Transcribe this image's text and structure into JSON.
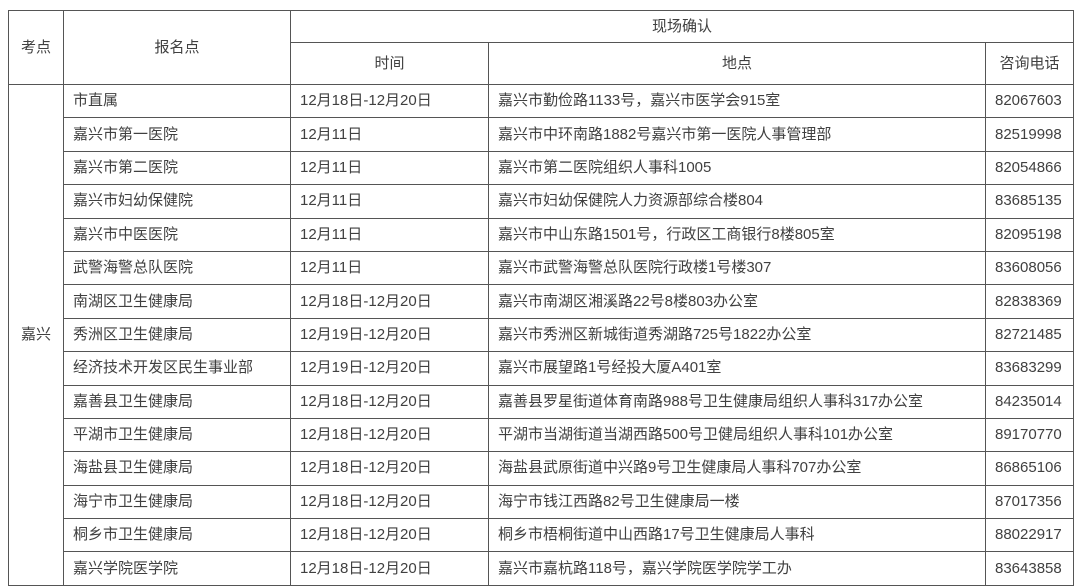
{
  "colors": {
    "background": "#ffffff",
    "text": "#404040",
    "border": "#555555"
  },
  "table": {
    "header": {
      "exam_site": "考点",
      "registration_point": "报名点",
      "onsite_confirmation": "现场确认",
      "time": "时间",
      "location": "地点",
      "phone": "咨询电话"
    },
    "exam_site_group": "嘉兴",
    "rows": [
      {
        "point": "市直属",
        "time": "12月18日-12月20日",
        "location": "嘉兴市勤俭路1133号，嘉兴市医学会915室",
        "phone": "82067603"
      },
      {
        "point": "嘉兴市第一医院",
        "time": "12月11日",
        "location": "嘉兴市中环南路1882号嘉兴市第一医院人事管理部",
        "phone": "82519998"
      },
      {
        "point": "嘉兴市第二医院",
        "time": "12月11日",
        "location": "嘉兴市第二医院组织人事科1005",
        "phone": "82054866"
      },
      {
        "point": "嘉兴市妇幼保健院",
        "time": "12月11日",
        "location": "嘉兴市妇幼保健院人力资源部综合楼804",
        "phone": "83685135"
      },
      {
        "point": "嘉兴市中医医院",
        "time": "12月11日",
        "location": "嘉兴市中山东路1501号，行政区工商银行8楼805室",
        "phone": "82095198"
      },
      {
        "point": "武警海警总队医院",
        "time": "12月11日",
        "location": "嘉兴市武警海警总队医院行政楼1号楼307",
        "phone": "83608056"
      },
      {
        "point": "南湖区卫生健康局",
        "time": "12月18日-12月20日",
        "location": "嘉兴市南湖区湘溪路22号8楼803办公室",
        "phone": "82838369"
      },
      {
        "point": "秀洲区卫生健康局",
        "time": "12月19日-12月20日",
        "location": "嘉兴市秀洲区新城街道秀湖路725号1822办公室",
        "phone": "82721485"
      },
      {
        "point": "经济技术开发区民生事业部",
        "time": "12月19日-12月20日",
        "location": "嘉兴市展望路1号经投大厦A401室",
        "phone": "83683299"
      },
      {
        "point": "嘉善县卫生健康局",
        "time": "12月18日-12月20日",
        "location": "嘉善县罗星街道体育南路988号卫生健康局组织人事科317办公室",
        "phone": "84235014"
      },
      {
        "point": "平湖市卫生健康局",
        "time": "12月18日-12月20日",
        "location": "平湖市当湖街道当湖西路500号卫健局组织人事科101办公室",
        "phone": "89170770"
      },
      {
        "point": "海盐县卫生健康局",
        "time": "12月18日-12月20日",
        "location": "海盐县武原街道中兴路9号卫生健康局人事科707办公室",
        "phone": "86865106"
      },
      {
        "point": "海宁市卫生健康局",
        "time": "12月18日-12月20日",
        "location": "海宁市钱江西路82号卫生健康局一楼",
        "phone": "87017356"
      },
      {
        "point": "桐乡市卫生健康局",
        "time": "12月18日-12月20日",
        "location": "桐乡市梧桐街道中山西路17号卫生健康局人事科",
        "phone": "88022917"
      },
      {
        "point": "嘉兴学院医学院",
        "time": "12月18日-12月20日",
        "location": "嘉兴市嘉杭路118号，嘉兴学院医学院学工办",
        "phone": "83643858"
      }
    ]
  }
}
